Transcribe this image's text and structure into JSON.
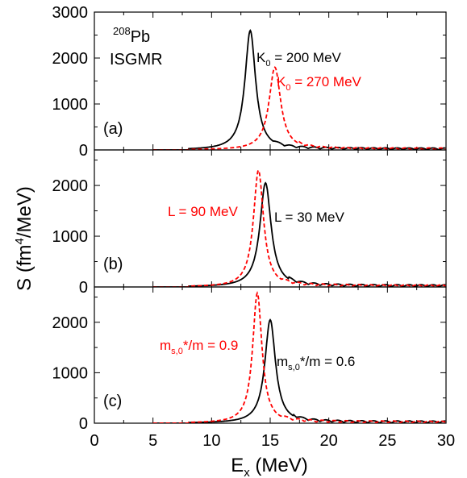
{
  "chart_data": {
    "type": "line",
    "xlabel": "E",
    "xlabel_sub": "x",
    "xlabel_unit": " (MeV)",
    "ylabel": "S (fm",
    "ylabel_sup": "4",
    "ylabel_unit": "/MeV)",
    "xlim": [
      0,
      30
    ],
    "x_ticks": [
      0,
      5,
      10,
      15,
      20,
      25,
      30
    ],
    "colors": {
      "black": "#000000",
      "red": "#ff0000"
    },
    "panels": [
      {
        "label": "(a)",
        "ylim": [
          0,
          3000
        ],
        "y_ticks": [
          0,
          1000,
          2000,
          3000
        ],
        "title_lines": [
          "Pb",
          "ISGMR"
        ],
        "title_sup": "208",
        "series": [
          {
            "name": "K0 = 200 MeV",
            "color": "#000000",
            "dashed": false,
            "peak": 13.3,
            "height": 2600,
            "gamma": 0.55
          },
          {
            "name": "K0 = 270 MeV",
            "color": "#ff0000",
            "dashed": true,
            "peak": 15.4,
            "height": 1800,
            "gamma": 0.6
          }
        ],
        "annotations": [
          {
            "pre": "K",
            "sub": "0",
            "post": " = 200 MeV",
            "color": "#000000"
          },
          {
            "pre": "K",
            "sub": "0",
            "post": " = 270 MeV",
            "color": "#ff0000"
          }
        ]
      },
      {
        "label": "(b)",
        "ylim": [
          0,
          2700
        ],
        "y_ticks": [
          0,
          1000,
          2000
        ],
        "series": [
          {
            "name": "L = 30 MeV",
            "color": "#000000",
            "dashed": false,
            "peak": 14.6,
            "height": 2050,
            "gamma": 0.58
          },
          {
            "name": "L = 90 MeV",
            "color": "#ff0000",
            "dashed": true,
            "peak": 14.0,
            "height": 2300,
            "gamma": 0.52
          }
        ],
        "annotations": [
          {
            "pre": "L = 90 MeV",
            "sub": "",
            "post": "",
            "color": "#ff0000"
          },
          {
            "pre": "L = 30 MeV",
            "sub": "",
            "post": "",
            "color": "#000000"
          }
        ]
      },
      {
        "label": "(c)",
        "ylim": [
          0,
          2700
        ],
        "y_ticks": [
          0,
          1000,
          2000
        ],
        "series": [
          {
            "name": "ms,0*/m = 0.6",
            "color": "#000000",
            "dashed": false,
            "peak": 15.0,
            "height": 2050,
            "gamma": 0.55
          },
          {
            "name": "ms,0*/m = 0.9",
            "color": "#ff0000",
            "dashed": true,
            "peak": 13.9,
            "height": 2580,
            "gamma": 0.48
          }
        ],
        "annotations": [
          {
            "pre": "m",
            "sub": "s,0",
            "post": "*/m = 0.9",
            "color": "#ff0000"
          },
          {
            "pre": "m",
            "sub": "s,0",
            "post": "*/m = 0.6",
            "color": "#000000"
          }
        ]
      }
    ]
  }
}
